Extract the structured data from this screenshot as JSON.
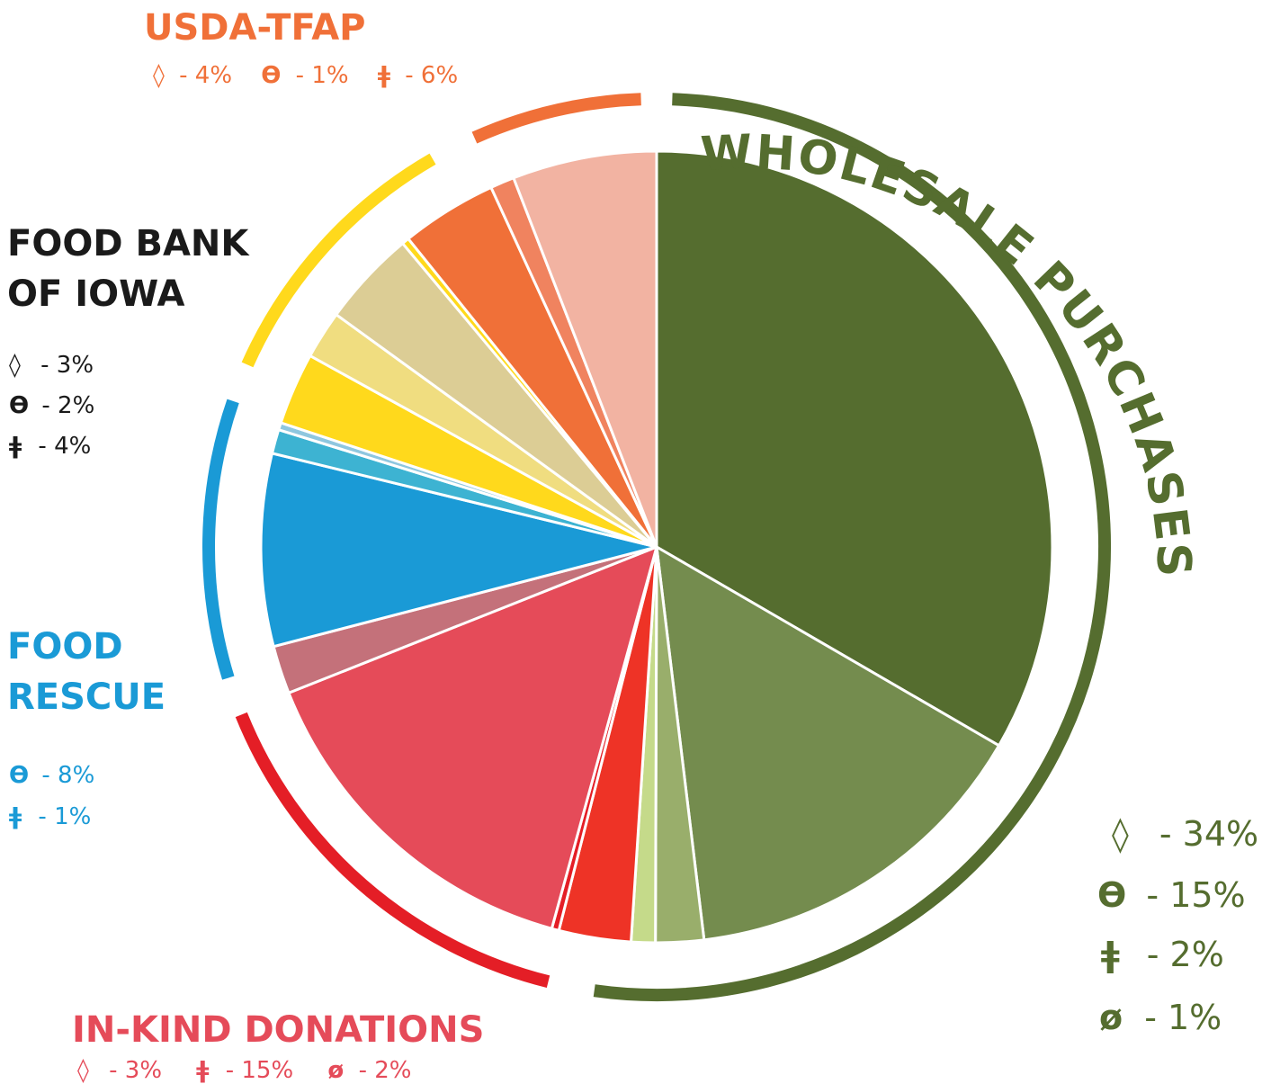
{
  "chart_data": {
    "type": "pie",
    "colors": {
      "wholesale": "#556d2f",
      "usda": "#f07038",
      "foodbank": "#ffd91c",
      "rescue": "#1a9ad6",
      "inkind": "#e41e26",
      "inkind_label": "#e54b59",
      "foodbank_label": "#1a1a1a"
    },
    "slices": [
      {
        "group": "WHOLESALE PURCHASES",
        "symbol": "◊",
        "value": 34,
        "color": "#556d2f"
      },
      {
        "group": "WHOLESALE PURCHASES",
        "symbol": "ϴ",
        "value": 15,
        "color": "#748c4e"
      },
      {
        "group": "WHOLESALE PURCHASES",
        "symbol": "ǂ",
        "value": 2,
        "color": "#99ae6b"
      },
      {
        "group": "WHOLESALE PURCHASES",
        "symbol": "ø",
        "value": 1,
        "color": "#c5da8a"
      },
      {
        "group": "IN-KIND DONATIONS",
        "symbol": "◊",
        "value": 3,
        "color": "#ee3326"
      },
      {
        "group": "IN-KIND DONATIONS",
        "symbol": "ø",
        "value": 0.3,
        "color": "#e41e26"
      },
      {
        "group": "IN-KIND DONATIONS",
        "symbol": "ǂ",
        "value": 15,
        "color": "#e54b59"
      },
      {
        "group": "IN-KIND DONATIONS",
        "symbol": "ø",
        "value": 2,
        "color": "#c4717a"
      },
      {
        "group": "FOOD RESCUE",
        "symbol": "ϴ",
        "value": 8,
        "color": "#1a9ad6"
      },
      {
        "group": "FOOD RESCUE",
        "symbol": "ǂ",
        "value": 1,
        "color": "#3db3d2"
      },
      {
        "group": "FOOD RESCUE",
        "symbol": "",
        "value": 0.3,
        "color": "#8fc7df"
      },
      {
        "group": "FOOD BANK OF IOWA",
        "symbol": "◊",
        "value": 3,
        "color": "#ffd91c"
      },
      {
        "group": "FOOD BANK OF IOWA",
        "symbol": "ϴ",
        "value": 2,
        "color": "#f0dd80"
      },
      {
        "group": "FOOD BANK OF IOWA",
        "symbol": "ǂ",
        "value": 4,
        "color": "#dccd95"
      },
      {
        "group": "FOOD BANK OF IOWA",
        "symbol": "",
        "value": 0.3,
        "color": "#ffd91c"
      },
      {
        "group": "USDA-TFAP",
        "symbol": "◊",
        "value": 4,
        "color": "#f07038"
      },
      {
        "group": "USDA-TFAP",
        "symbol": "ϴ",
        "value": 1,
        "color": "#f0835f"
      },
      {
        "group": "USDA-TFAP",
        "symbol": "ǂ",
        "value": 6,
        "color": "#f2b3a2"
      }
    ],
    "groups": {
      "usda": {
        "title": "USDA-TFAP",
        "items": [
          {
            "symbol": "◊",
            "text": "- 4%"
          },
          {
            "symbol": "ϴ",
            "text": "- 1%"
          },
          {
            "symbol": "ǂ",
            "text": "- 6%"
          }
        ]
      },
      "foodbank": {
        "title_line1": "FOOD BANK",
        "title_line2": "OF IOWA",
        "items": [
          {
            "symbol": "◊",
            "text": "- 3%"
          },
          {
            "symbol": "ϴ",
            "text": "- 2%"
          },
          {
            "symbol": "ǂ",
            "text": "- 4%"
          }
        ]
      },
      "rescue": {
        "title_line1": "FOOD",
        "title_line2": "RESCUE",
        "items": [
          {
            "symbol": "ϴ",
            "text": "- 8%"
          },
          {
            "symbol": "ǂ",
            "text": "- 1%"
          }
        ]
      },
      "inkind": {
        "title": "IN-KIND DONATIONS",
        "items": [
          {
            "symbol": "◊",
            "text": "- 3%"
          },
          {
            "symbol": "ǂ",
            "text": "- 15%"
          },
          {
            "symbol": "ø",
            "text": "- 2%"
          }
        ]
      },
      "wholesale": {
        "title": "WHOLESALE PURCHASES",
        "items": [
          {
            "symbol": "◊",
            "text": "- 34%"
          },
          {
            "symbol": "ϴ",
            "text": "- 15%"
          },
          {
            "symbol": "ǂ",
            "text": "- 2%"
          },
          {
            "symbol": "ø",
            "text": "- 1%"
          }
        ]
      }
    }
  }
}
